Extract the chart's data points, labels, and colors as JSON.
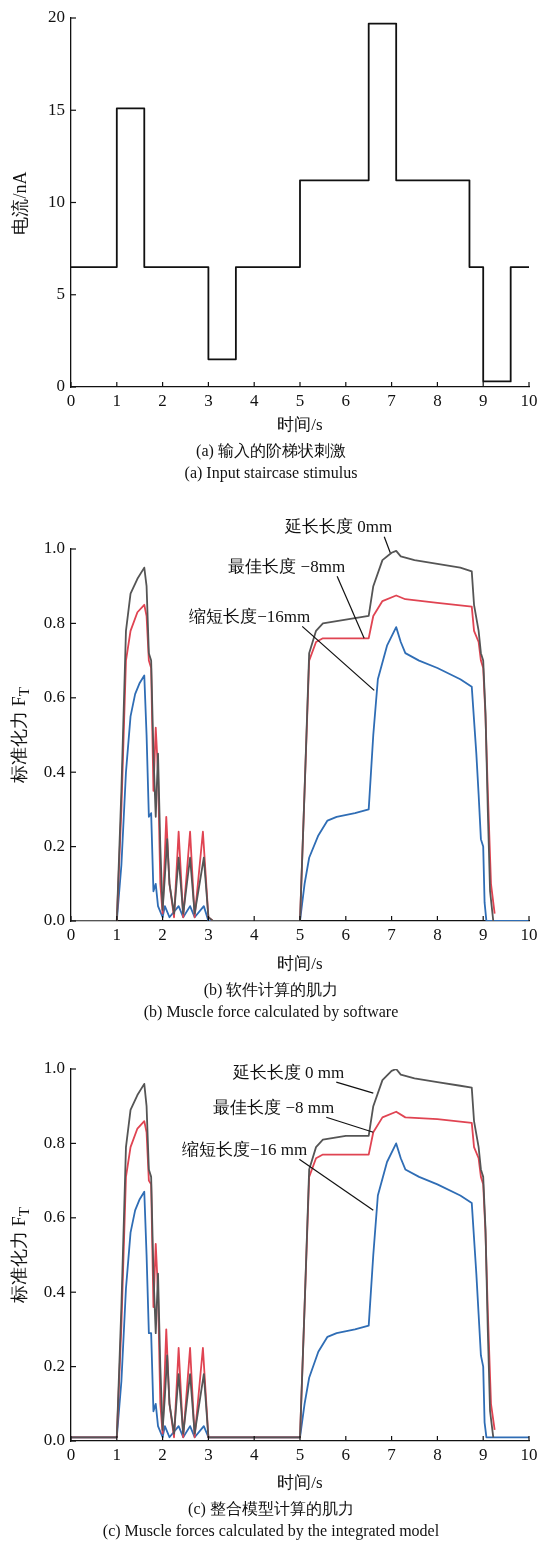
{
  "chart_data": [
    {
      "type": "step",
      "x": [
        0,
        1,
        1.6,
        3,
        3.6,
        5,
        6.5,
        7.1,
        8.7,
        9,
        9.6,
        10
      ],
      "values": [
        6.5,
        15.1,
        6.5,
        1.5,
        6.5,
        11.2,
        19.7,
        11.2,
        6.5,
        0.3,
        6.5,
        6.5
      ],
      "color": "#111111",
      "xlabel": "时间/s",
      "ylabel": "电流/nA",
      "xlim": [
        0,
        10
      ],
      "ylim": [
        0,
        20
      ],
      "xticks": [
        0,
        1,
        2,
        3,
        4,
        5,
        6,
        7,
        8,
        9,
        10
      ],
      "yticks": [
        0,
        5,
        10,
        15,
        20
      ],
      "annotations": [
        "(a) 输入的阶梯状刺激",
        "(a) Input staircase stimulus"
      ]
    },
    {
      "type": "line",
      "xlabel": "时间/s",
      "ylabel": "标准化力 F$_{T}$",
      "xlim": [
        0,
        10
      ],
      "ylim": [
        0,
        1
      ],
      "xticks": [
        0,
        1,
        2,
        3,
        4,
        5,
        6,
        7,
        8,
        9,
        10
      ],
      "yticks": [
        {
          "value": 0,
          "label": "0.0"
        },
        {
          "value": 0.2,
          "label": "0.2"
        },
        {
          "value": 0.4,
          "label": "0.4"
        },
        {
          "value": 0.6,
          "label": "0.6"
        },
        {
          "value": 0.8,
          "label": "0.8"
        },
        {
          "value": 1,
          "label": "1.0"
        }
      ],
      "series": [
        {
          "color": "#555555",
          "x": [
            0,
            1.0,
            1.1,
            1.2,
            1.3,
            1.45,
            1.6,
            1.65,
            1.7,
            1.75,
            1.8,
            1.85,
            1.9,
            1.95,
            2.0,
            2.05,
            2.1,
            2.15,
            2.25,
            2.35,
            2.45,
            2.6,
            2.7,
            2.9,
            3.0,
            3.1,
            5.0,
            5.1,
            5.2,
            5.35,
            5.5,
            6.0,
            6.5,
            6.6,
            6.8,
            7.0,
            7.1,
            7.2,
            7.5,
            8.0,
            8.5,
            8.75,
            8.8,
            8.9,
            8.95,
            9.0,
            9.05,
            9.1,
            9.15,
            9.22
          ],
          "values": [
            0,
            0,
            0.35,
            0.78,
            0.88,
            0.92,
            0.95,
            0.9,
            0.72,
            0.7,
            0.45,
            0.28,
            0.45,
            0.2,
            0.03,
            0.12,
            0.22,
            0.1,
            0.02,
            0.17,
            0.02,
            0.17,
            0.02,
            0.17,
            0.01,
            0,
            0,
            0.35,
            0.72,
            0.78,
            0.8,
            0.81,
            0.82,
            0.9,
            0.97,
            0.99,
            0.995,
            0.98,
            0.97,
            0.96,
            0.95,
            0.94,
            0.85,
            0.78,
            0.72,
            0.7,
            0.56,
            0.3,
            0.08,
            0
          ]
        },
        {
          "color": "#e04452",
          "x": [
            0,
            1.0,
            1.1,
            1.2,
            1.3,
            1.45,
            1.6,
            1.65,
            1.7,
            1.75,
            1.8,
            1.85,
            1.9,
            1.95,
            2.0,
            2.08,
            2.15,
            2.25,
            2.35,
            2.45,
            2.6,
            2.7,
            2.88,
            3.0,
            3.1,
            5.0,
            5.1,
            5.2,
            5.35,
            5.5,
            6.0,
            6.5,
            6.6,
            6.8,
            7.1,
            7.3,
            8.0,
            8.75,
            8.8,
            8.9,
            8.95,
            9.0,
            9.05,
            9.1,
            9.17,
            9.25
          ],
          "values": [
            0,
            0,
            0.3,
            0.7,
            0.78,
            0.83,
            0.85,
            0.82,
            0.7,
            0.68,
            0.35,
            0.52,
            0.4,
            0.1,
            0.02,
            0.28,
            0.1,
            0.01,
            0.24,
            0.01,
            0.24,
            0.01,
            0.24,
            0.01,
            0,
            0,
            0.35,
            0.7,
            0.75,
            0.76,
            0.76,
            0.76,
            0.82,
            0.86,
            0.875,
            0.865,
            0.855,
            0.845,
            0.78,
            0.75,
            0.7,
            0.68,
            0.55,
            0.35,
            0.1,
            0.02
          ]
        },
        {
          "color": "#2f6db5",
          "x": [
            0,
            1.0,
            1.1,
            1.2,
            1.3,
            1.4,
            1.5,
            1.6,
            1.65,
            1.7,
            1.75,
            1.8,
            1.85,
            1.9,
            2.0,
            2.05,
            2.15,
            2.35,
            2.45,
            2.6,
            2.7,
            2.9,
            3.0,
            5.0,
            5.1,
            5.2,
            5.4,
            5.6,
            5.8,
            6.2,
            6.5,
            6.6,
            6.7,
            6.9,
            7.1,
            7.2,
            7.3,
            7.6,
            8.0,
            8.5,
            8.75,
            8.85,
            8.9,
            8.95,
            9.0,
            9.03,
            9.07,
            10
          ],
          "values": [
            0,
            0,
            0.15,
            0.4,
            0.55,
            0.61,
            0.64,
            0.66,
            0.5,
            0.28,
            0.29,
            0.08,
            0.1,
            0.04,
            0.01,
            0.04,
            0.01,
            0.04,
            0.01,
            0.04,
            0.01,
            0.04,
            0,
            0,
            0.1,
            0.17,
            0.23,
            0.27,
            0.28,
            0.29,
            0.3,
            0.5,
            0.65,
            0.74,
            0.79,
            0.75,
            0.72,
            0.7,
            0.68,
            0.65,
            0.63,
            0.45,
            0.34,
            0.22,
            0.2,
            0.05,
            0,
            0
          ]
        }
      ],
      "annotations": [
        {
          "text": "延长长度 0mm",
          "x": 6.97,
          "y": 0.99
        },
        {
          "text": "最佳长度 −8mm",
          "x": 6.4,
          "y": 0.76
        },
        {
          "text": "缩短长度−16mm",
          "x": 6.62,
          "y": 0.62
        },
        "(b) 软件计算的肌力",
        "(b) Muscle force calculated by software"
      ]
    },
    {
      "type": "line",
      "xlabel": "时间/s",
      "ylabel": "标准化力 F$_{T}$",
      "xlim": [
        0,
        10
      ],
      "ylim": [
        0,
        1
      ],
      "xticks": [
        0,
        1,
        2,
        3,
        4,
        5,
        6,
        7,
        8,
        9,
        10
      ],
      "yticks": [
        {
          "value": 0,
          "label": "0.0"
        },
        {
          "value": 0.2,
          "label": "0.2"
        },
        {
          "value": 0.4,
          "label": "0.4"
        },
        {
          "value": 0.6,
          "label": "0.6"
        },
        {
          "value": 0.8,
          "label": "0.8"
        },
        {
          "value": 1,
          "label": "1.0"
        }
      ],
      "series": [
        {
          "color": "#555555",
          "x": [
            0,
            1.0,
            1.1,
            1.2,
            1.3,
            1.45,
            1.6,
            1.65,
            1.7,
            1.75,
            1.8,
            1.85,
            1.9,
            1.95,
            2.0,
            2.05,
            2.1,
            2.15,
            2.25,
            2.35,
            2.45,
            2.6,
            2.7,
            2.9,
            3.0,
            3.1,
            5.0,
            5.1,
            5.2,
            5.35,
            5.5,
            6.0,
            6.5,
            6.6,
            6.8,
            7.0,
            7.1,
            7.2,
            7.5,
            8.0,
            8.5,
            8.75,
            8.8,
            8.9,
            8.95,
            9.0,
            9.05,
            9.1,
            9.15,
            9.22
          ],
          "values": [
            0.01,
            0.01,
            0.36,
            0.79,
            0.89,
            0.93,
            0.96,
            0.9,
            0.73,
            0.71,
            0.45,
            0.29,
            0.45,
            0.2,
            0.03,
            0.12,
            0.23,
            0.1,
            0.02,
            0.18,
            0.02,
            0.18,
            0.02,
            0.18,
            0.01,
            0.01,
            0.01,
            0.36,
            0.73,
            0.79,
            0.81,
            0.82,
            0.82,
            0.9,
            0.97,
            0.995,
            1.0,
            0.985,
            0.975,
            0.965,
            0.955,
            0.95,
            0.86,
            0.79,
            0.73,
            0.71,
            0.57,
            0.3,
            0.08,
            0.01
          ]
        },
        {
          "color": "#e04452",
          "x": [
            0,
            1.0,
            1.1,
            1.2,
            1.3,
            1.45,
            1.6,
            1.65,
            1.7,
            1.75,
            1.8,
            1.85,
            1.9,
            1.95,
            2.0,
            2.08,
            2.15,
            2.25,
            2.35,
            2.45,
            2.6,
            2.7,
            2.88,
            3.0,
            3.1,
            5.0,
            5.1,
            5.2,
            5.35,
            5.5,
            6.0,
            6.5,
            6.6,
            6.8,
            7.1,
            7.3,
            8.0,
            8.75,
            8.8,
            8.9,
            8.95,
            9.0,
            9.05,
            9.1,
            9.17,
            9.25
          ],
          "values": [
            0.01,
            0.01,
            0.31,
            0.71,
            0.79,
            0.84,
            0.86,
            0.83,
            0.7,
            0.69,
            0.36,
            0.53,
            0.4,
            0.1,
            0.02,
            0.3,
            0.1,
            0.01,
            0.25,
            0.01,
            0.25,
            0.01,
            0.25,
            0.01,
            0.01,
            0.01,
            0.36,
            0.71,
            0.76,
            0.77,
            0.77,
            0.77,
            0.83,
            0.87,
            0.885,
            0.87,
            0.865,
            0.855,
            0.79,
            0.76,
            0.71,
            0.69,
            0.56,
            0.35,
            0.1,
            0.03
          ]
        },
        {
          "color": "#2f6db5",
          "x": [
            0,
            1.0,
            1.1,
            1.2,
            1.3,
            1.4,
            1.5,
            1.6,
            1.65,
            1.7,
            1.75,
            1.8,
            1.85,
            1.9,
            2.0,
            2.05,
            2.15,
            2.35,
            2.45,
            2.6,
            2.7,
            2.9,
            3.0,
            5.0,
            5.1,
            5.2,
            5.4,
            5.6,
            5.8,
            6.2,
            6.5,
            6.6,
            6.7,
            6.9,
            7.1,
            7.2,
            7.3,
            7.6,
            8.0,
            8.5,
            8.75,
            8.85,
            8.9,
            8.95,
            9.0,
            9.03,
            9.07,
            10
          ],
          "values": [
            0.01,
            0.01,
            0.16,
            0.41,
            0.56,
            0.62,
            0.65,
            0.67,
            0.5,
            0.29,
            0.29,
            0.08,
            0.1,
            0.04,
            0.01,
            0.04,
            0.01,
            0.04,
            0.01,
            0.04,
            0.01,
            0.04,
            0.01,
            0.01,
            0.1,
            0.17,
            0.24,
            0.28,
            0.29,
            0.3,
            0.31,
            0.5,
            0.66,
            0.75,
            0.8,
            0.76,
            0.73,
            0.71,
            0.69,
            0.66,
            0.64,
            0.45,
            0.34,
            0.23,
            0.2,
            0.05,
            0.01,
            0.01
          ]
        }
      ],
      "annotations": [
        {
          "text": "延长长度 0 mm",
          "x": 6.6,
          "y": 0.935
        },
        {
          "text": "最佳长度 −8 mm",
          "x": 6.6,
          "y": 0.83
        },
        {
          "text": "缩短长度−16 mm",
          "x": 6.6,
          "y": 0.62
        },
        "(c) 整合模型计算的肌力",
        "(c) Muscle forces calculated by the integrated model"
      ]
    }
  ]
}
